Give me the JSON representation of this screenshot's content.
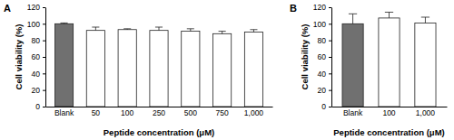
{
  "chart_data": [
    {
      "type": "bar",
      "title": "A",
      "x_label": "Peptide concentration (μM)",
      "y_label": "Cell viability (%)",
      "categories": [
        "Blank",
        "50",
        "100",
        "250",
        "500",
        "750",
        "1,000"
      ],
      "values": [
        100,
        92,
        93,
        92,
        91,
        88,
        90
      ],
      "errors": [
        1,
        4,
        1,
        4,
        3,
        3,
        3
      ],
      "colors": [
        "#707070",
        "#ffffff",
        "#ffffff",
        "#ffffff",
        "#ffffff",
        "#ffffff",
        "#ffffff"
      ],
      "ylim": [
        0,
        120
      ],
      "yticks": [
        0,
        20,
        40,
        60,
        80,
        100,
        120
      ]
    },
    {
      "type": "bar",
      "title": "B",
      "x_label": "Peptide concentration (μM)",
      "y_label": "Cell viability (%)",
      "categories": [
        "Blank",
        "100",
        "1,000"
      ],
      "values": [
        100,
        107,
        101
      ],
      "errors": [
        12,
        7,
        7
      ],
      "colors": [
        "#707070",
        "#ffffff",
        "#ffffff"
      ],
      "ylim": [
        0,
        120
      ],
      "yticks": [
        0,
        20,
        40,
        60,
        80,
        100,
        120
      ]
    }
  ]
}
